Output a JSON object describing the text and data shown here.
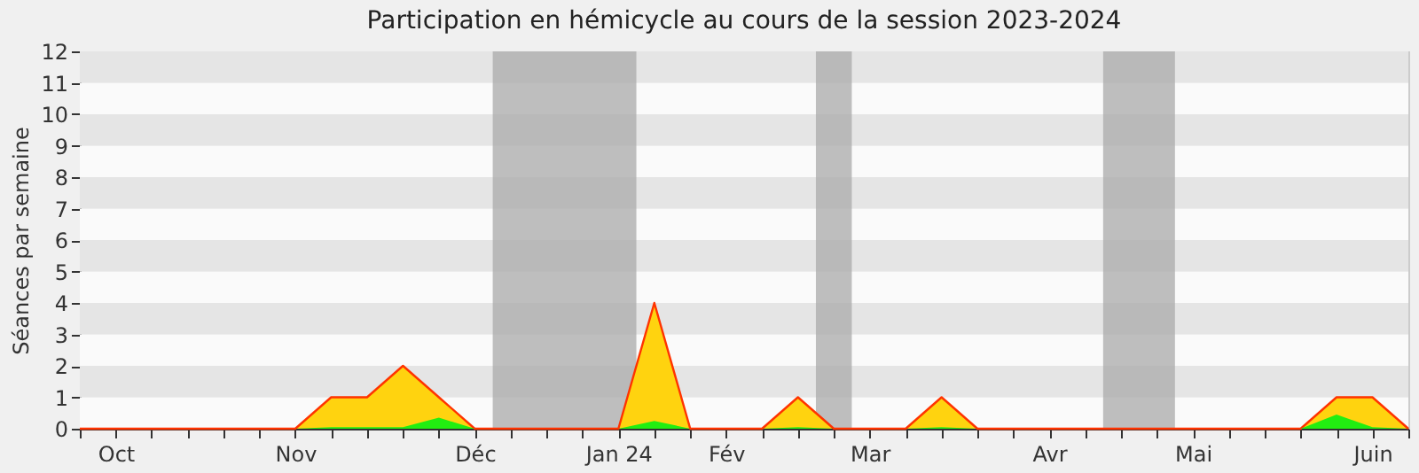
{
  "chart_data": {
    "type": "area",
    "title": "Participation en hémicycle au cours de la session 2023-2024",
    "ylabel": "Séances par semaine",
    "categories": [
      null,
      "Oct",
      null,
      null,
      null,
      null,
      "Nov",
      null,
      null,
      null,
      null,
      "Déc",
      null,
      null,
      null,
      "Jan 24",
      null,
      null,
      "Fév",
      null,
      null,
      null,
      "Mar",
      null,
      null,
      null,
      null,
      "Avr",
      null,
      null,
      null,
      "Mai",
      null,
      null,
      null,
      null,
      "Juin",
      null
    ],
    "series": [
      {
        "color": "#ffd30f",
        "values": [
          0,
          0,
          0,
          0,
          0,
          0,
          0,
          1,
          1,
          2,
          1,
          0,
          0,
          0,
          0,
          0,
          4,
          0,
          0,
          0,
          1,
          0,
          0,
          0,
          1,
          0,
          0,
          0,
          0,
          0,
          0,
          0,
          0,
          0,
          0,
          1,
          1,
          0
        ]
      },
      {
        "color": "#22ee11",
        "values": [
          0,
          0,
          0,
          0,
          0,
          0,
          0,
          0.05,
          0.05,
          0.05,
          0.35,
          0,
          0,
          0,
          0,
          0,
          0.25,
          0,
          0,
          0,
          0.05,
          0,
          0,
          0,
          0.05,
          0,
          0,
          0,
          0,
          0,
          0,
          0,
          0,
          0,
          0,
          0.45,
          0.05,
          0
        ]
      }
    ],
    "ylim": [
      0,
      12
    ],
    "yticks": [
      0,
      1,
      2,
      3,
      4,
      5,
      6,
      7,
      8,
      9,
      10,
      11,
      12
    ]
  }
}
